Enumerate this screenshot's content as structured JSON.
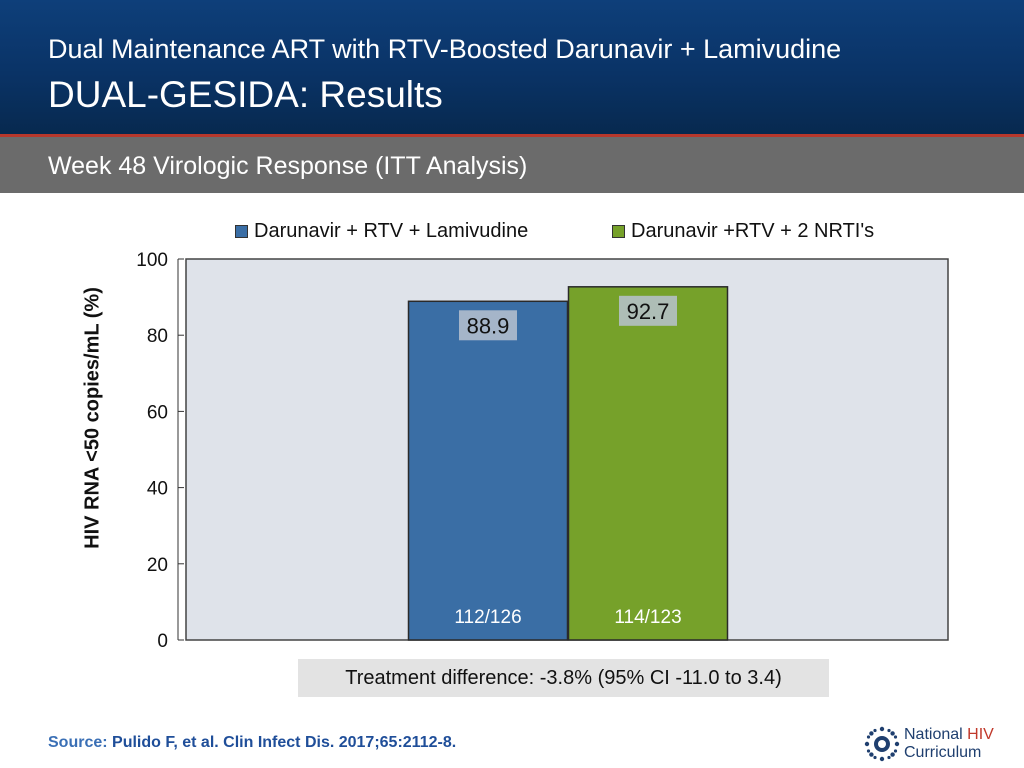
{
  "header": {
    "title_line1": "Dual Maintenance ART with RTV-Boosted Darunavir + Lamivudine",
    "title_line2": "DUAL-GESIDA: Results",
    "subtitle": "Week 48 Virologic Response (ITT Analysis)"
  },
  "colors": {
    "header_bg": "#0a3366",
    "accent_line": "#b7382c",
    "subtitle_bar": "#6b6b6b",
    "series1": "#3a6ea5",
    "series2": "#76a12a",
    "plot_bg": "#dfe3ea"
  },
  "chart_data": {
    "type": "bar",
    "ylabel": "HIV RNA <50 copies/mL (%)",
    "ylim": [
      0,
      100
    ],
    "yticks": [
      0,
      20,
      40,
      60,
      80,
      100
    ],
    "grid": false,
    "legend_position": "top",
    "series": [
      {
        "name": "Darunavir + RTV + Lamivudine",
        "value": 88.9,
        "value_label": "88.9",
        "count_label": "112/126",
        "color": "#3a6ea5"
      },
      {
        "name": "Darunavir +RTV + 2 NRTI's",
        "value": 92.7,
        "value_label": "92.7",
        "count_label": "114/123",
        "color": "#76a12a"
      }
    ]
  },
  "annotation": {
    "treatment_difference": "Treatment difference: -3.8% (95% CI -11.0 to 3.4)"
  },
  "footer": {
    "source_label": "Source:",
    "source_text": "Pulido F, et al. Clin Infect Dis. 2017;65:2112-8.",
    "logo_line1": "National",
    "logo_line1_hiv": "HIV",
    "logo_line2": "Curriculum",
    "logo_icon": "gear-sun-icon"
  }
}
